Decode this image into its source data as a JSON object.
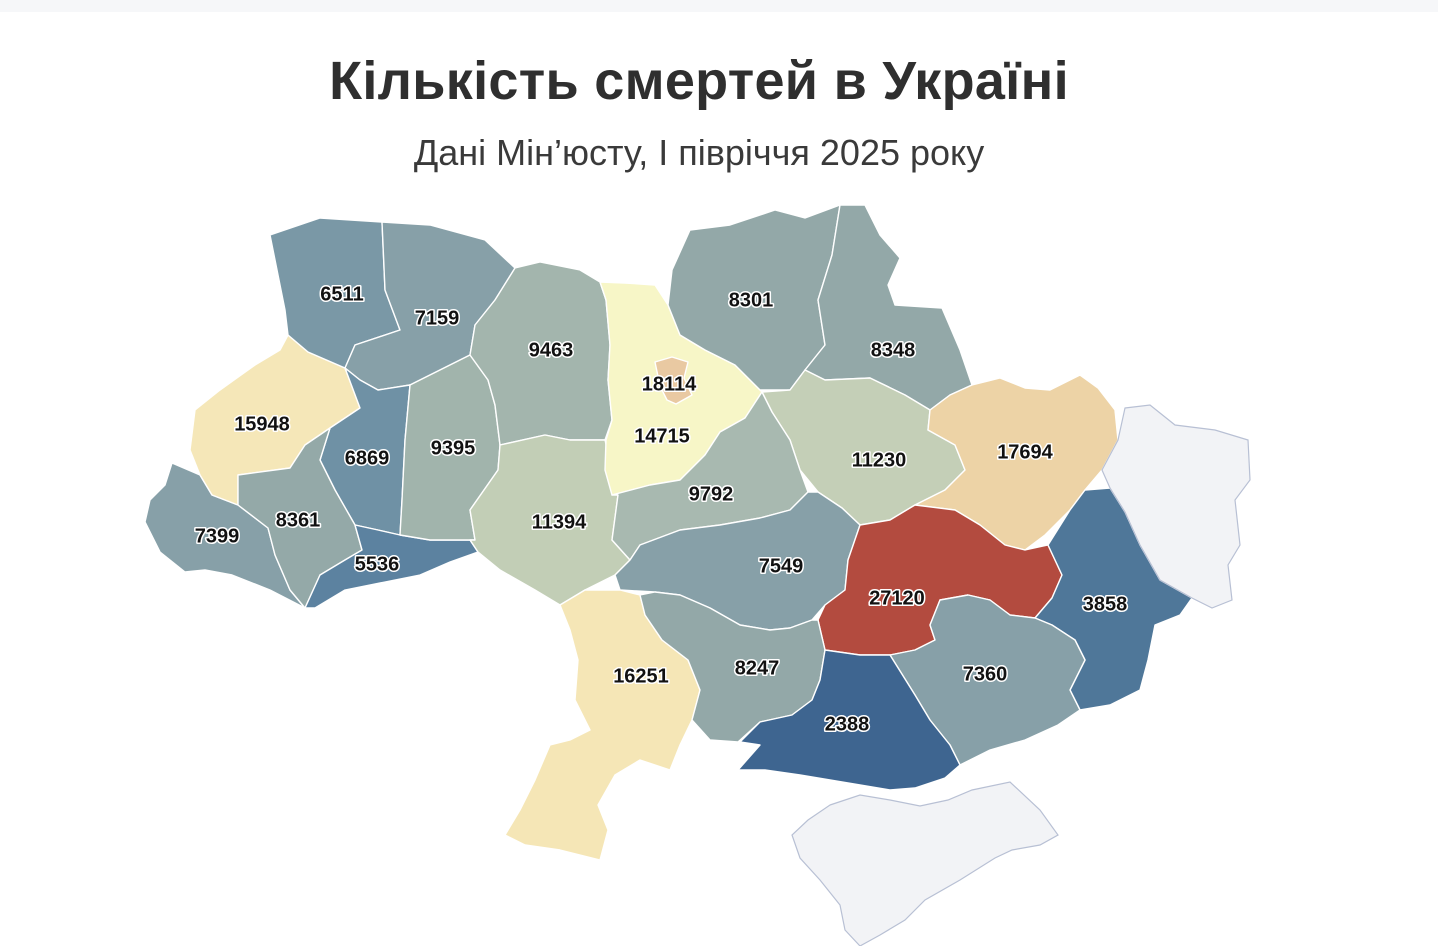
{
  "chart": {
    "title": "Кількість смертей в Україні",
    "subtitle": "Дані Мін’юсту, І півріччя 2025 року"
  },
  "chart_data": {
    "type": "choropleth",
    "colors": {
      "very_low": "#3e6590",
      "low": "#5a809c",
      "mid_low": "#7a98a6",
      "mid": "#90a6a6",
      "mid_high": "#a9bab0",
      "upper": "#c4cfb6",
      "high": "#f5e6b6",
      "very_high": "#f5f5c8",
      "peach": "#edd2a6",
      "top": "#b34b3f",
      "no_data": "#f2f3f6"
    },
    "regions": [
      {
        "id": "volyn",
        "value": 6511,
        "color": "#7a98a6"
      },
      {
        "id": "rivne",
        "value": 7159,
        "color": "#87a0a8"
      },
      {
        "id": "zhytomyr",
        "value": 9463,
        "color": "#a3b5ad"
      },
      {
        "id": "kyiv-oblast",
        "value": 14715,
        "color": "#f7f6c7"
      },
      {
        "id": "kyiv-city",
        "value": 18114,
        "color": "#e9c9a2"
      },
      {
        "id": "chernihiv",
        "value": 8301,
        "color": "#93a8a8"
      },
      {
        "id": "sumy",
        "value": 8348,
        "color": "#93a8a8"
      },
      {
        "id": "lviv",
        "value": 15948,
        "color": "#f5e7b8"
      },
      {
        "id": "ternopil",
        "value": 6869,
        "color": "#6f91a5"
      },
      {
        "id": "khmelnytskyi",
        "value": 9395,
        "color": "#a1b4ac"
      },
      {
        "id": "vinnytsia",
        "value": 11394,
        "color": "#c2ceb6"
      },
      {
        "id": "cherkasy",
        "value": 9792,
        "color": "#a8b9b0"
      },
      {
        "id": "poltava",
        "value": 11230,
        "color": "#c4cfb7"
      },
      {
        "id": "kharkiv",
        "value": 17694,
        "color": "#edd3a6"
      },
      {
        "id": "zakarpattia",
        "value": 7399,
        "color": "#87a0a8"
      },
      {
        "id": "ivano-frankivsk",
        "value": 8361,
        "color": "#94a9a8"
      },
      {
        "id": "chernivtsi",
        "value": 5536,
        "color": "#5c82a0"
      },
      {
        "id": "kirovohrad",
        "value": 7549,
        "color": "#87a0a8"
      },
      {
        "id": "dnipropetrovsk",
        "value": 27120,
        "color": "#b34b3f"
      },
      {
        "id": "donetsk",
        "value": 3858,
        "color": "#4f7799"
      },
      {
        "id": "odesa",
        "value": 16251,
        "color": "#f5e6b6"
      },
      {
        "id": "mykolaiv",
        "value": 8247,
        "color": "#93a8a8"
      },
      {
        "id": "zaporizhzhia",
        "value": 7360,
        "color": "#87a0a8"
      },
      {
        "id": "kherson",
        "value": 2388,
        "color": "#3e6590"
      },
      {
        "id": "luhansk",
        "value": null,
        "color": "#f2f3f6"
      },
      {
        "id": "crimea",
        "value": null,
        "color": "#f2f3f6"
      }
    ]
  }
}
